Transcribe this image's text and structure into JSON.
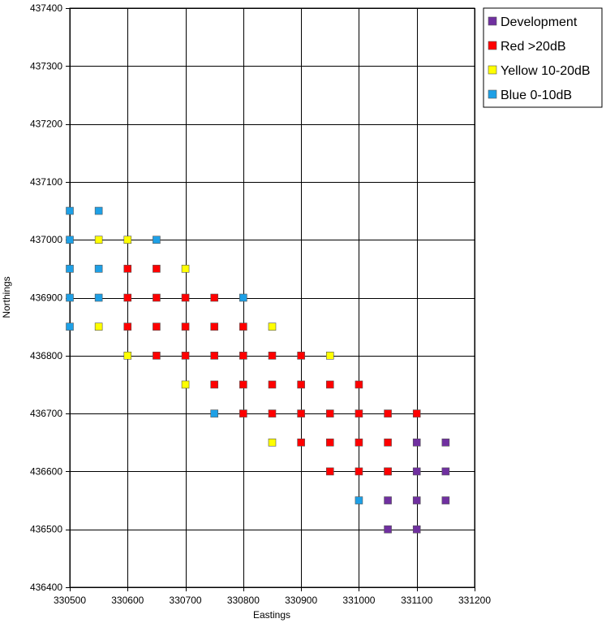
{
  "chart_data": {
    "type": "scatter",
    "title": "",
    "xlabel": "Eastings",
    "ylabel": "Northings",
    "xlim": [
      330500,
      331200
    ],
    "ylim": [
      436400,
      437400
    ],
    "xticks": [
      330500,
      330600,
      330700,
      330800,
      330900,
      331000,
      331100,
      331200
    ],
    "yticks": [
      436400,
      436500,
      436600,
      436700,
      436800,
      436900,
      437000,
      437100,
      437200,
      437300,
      437400
    ],
    "grid": true,
    "legend_position": "right",
    "series": [
      {
        "name": "Development",
        "color": "#7030a0",
        "points": [
          [
            331100,
            436650
          ],
          [
            331150,
            436650
          ],
          [
            331050,
            436600
          ],
          [
            331100,
            436600
          ],
          [
            331150,
            436600
          ],
          [
            331050,
            436550
          ],
          [
            331100,
            436550
          ],
          [
            331150,
            436550
          ],
          [
            331050,
            436500
          ],
          [
            331100,
            436500
          ]
        ]
      },
      {
        "name": "Red >20dB",
        "color": "#ff0000",
        "points": [
          [
            330600,
            436950
          ],
          [
            330650,
            436950
          ],
          [
            330600,
            436900
          ],
          [
            330650,
            436900
          ],
          [
            330700,
            436900
          ],
          [
            330750,
            436900
          ],
          [
            330600,
            436850
          ],
          [
            330650,
            436850
          ],
          [
            330700,
            436850
          ],
          [
            330750,
            436850
          ],
          [
            330800,
            436850
          ],
          [
            330650,
            436800
          ],
          [
            330700,
            436800
          ],
          [
            330750,
            436800
          ],
          [
            330800,
            436800
          ],
          [
            330850,
            436800
          ],
          [
            330900,
            436800
          ],
          [
            330750,
            436750
          ],
          [
            330800,
            436750
          ],
          [
            330850,
            436750
          ],
          [
            330900,
            436750
          ],
          [
            330950,
            436750
          ],
          [
            331000,
            436750
          ],
          [
            330800,
            436700
          ],
          [
            330850,
            436700
          ],
          [
            330900,
            436700
          ],
          [
            330950,
            436700
          ],
          [
            331000,
            436700
          ],
          [
            331050,
            436700
          ],
          [
            331100,
            436700
          ],
          [
            330900,
            436650
          ],
          [
            330950,
            436650
          ],
          [
            331000,
            436650
          ],
          [
            331050,
            436650
          ],
          [
            330950,
            436600
          ],
          [
            331000,
            436600
          ],
          [
            331050,
            436600
          ]
        ]
      },
      {
        "name": "Yellow 10-20dB",
        "color": "#ffff00",
        "points": [
          [
            330550,
            437000
          ],
          [
            330600,
            437000
          ],
          [
            330700,
            436950
          ],
          [
            330550,
            436850
          ],
          [
            330850,
            436850
          ],
          [
            330600,
            436800
          ],
          [
            330950,
            436800
          ],
          [
            330700,
            436750
          ],
          [
            330850,
            436650
          ]
        ]
      },
      {
        "name": "Blue 0-10dB",
        "color": "#1ea0e6",
        "points": [
          [
            330500,
            437050
          ],
          [
            330550,
            437050
          ],
          [
            330500,
            437000
          ],
          [
            330650,
            437000
          ],
          [
            330500,
            436950
          ],
          [
            330550,
            436950
          ],
          [
            330500,
            436900
          ],
          [
            330550,
            436900
          ],
          [
            330800,
            436900
          ],
          [
            330500,
            436850
          ],
          [
            330750,
            436700
          ],
          [
            331000,
            436550
          ]
        ]
      }
    ]
  }
}
